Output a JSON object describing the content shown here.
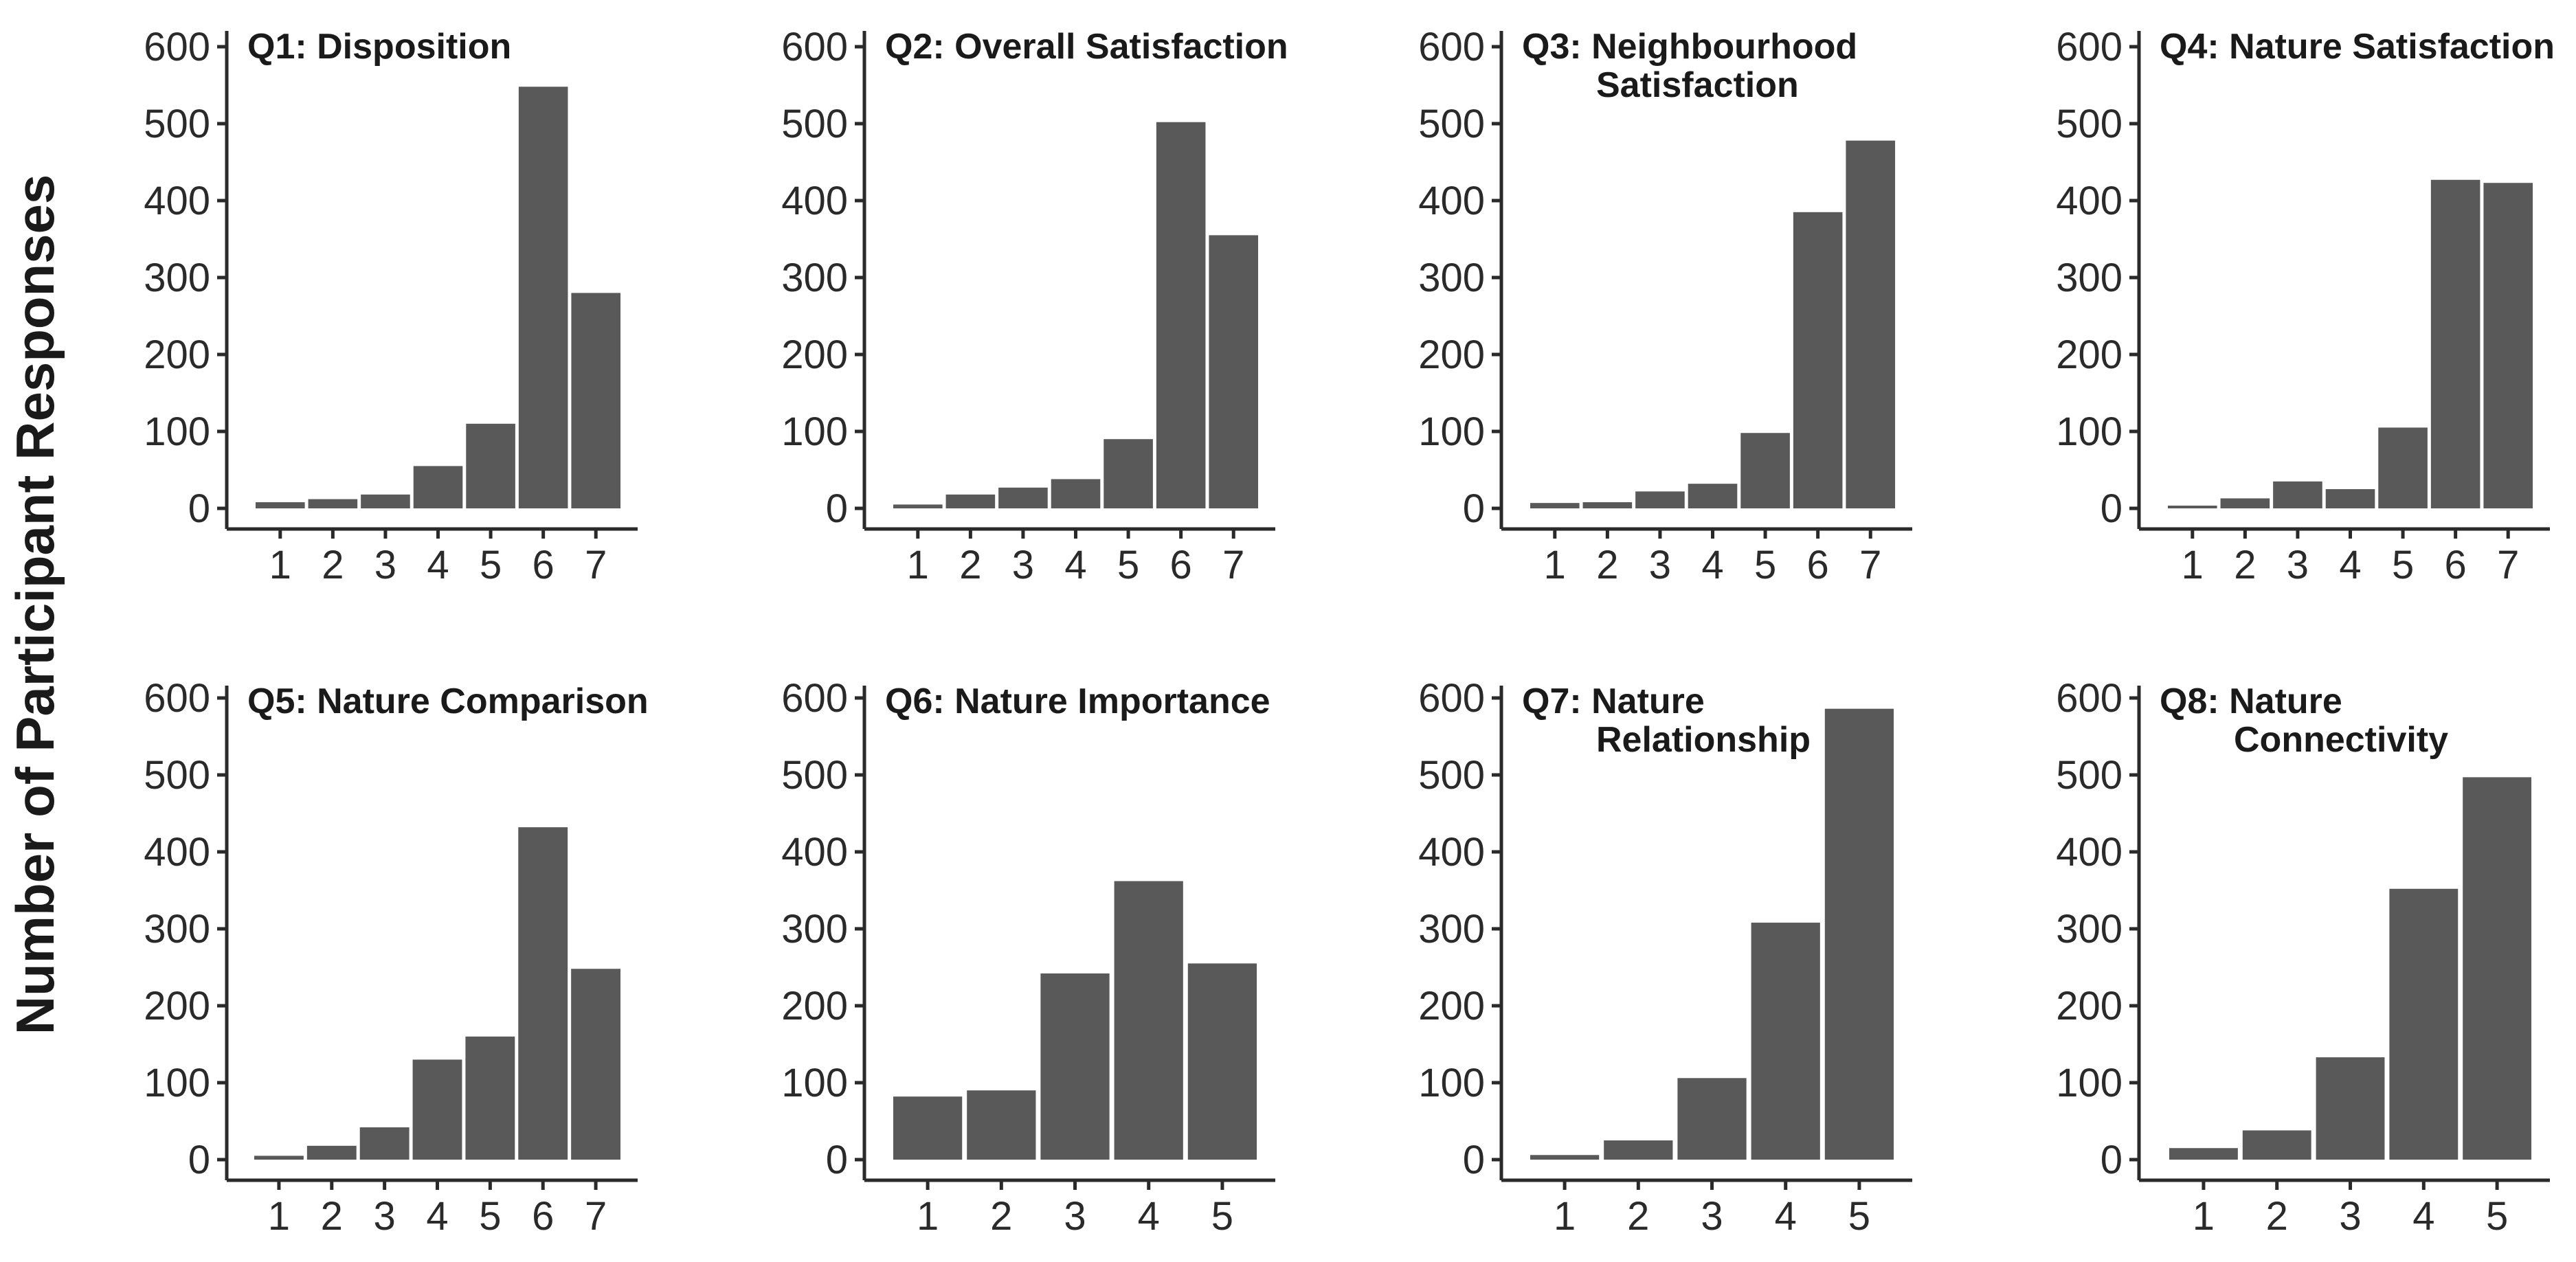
{
  "figure": {
    "ylabel": "Number of Participant Responses",
    "bar_color": "#595959",
    "axis_color": "#2a2a2a"
  },
  "chart_data": [
    {
      "type": "bar",
      "title_lines": [
        "Q1: Disposition"
      ],
      "categories": [
        "1",
        "2",
        "3",
        "4",
        "5",
        "6",
        "7"
      ],
      "values": [
        8,
        12,
        18,
        55,
        110,
        548,
        280
      ],
      "ylim": [
        0,
        620
      ],
      "yticks": [
        0,
        100,
        200,
        300,
        400,
        500,
        600
      ]
    },
    {
      "type": "bar",
      "title_lines": [
        "Q2: Overall Satisfaction"
      ],
      "categories": [
        "1",
        "2",
        "3",
        "4",
        "5",
        "6",
        "7"
      ],
      "values": [
        5,
        18,
        27,
        38,
        90,
        502,
        355
      ],
      "ylim": [
        0,
        620
      ],
      "yticks": [
        0,
        100,
        200,
        300,
        400,
        500,
        600
      ]
    },
    {
      "type": "bar",
      "title_lines": [
        "Q3: Neighbourhood",
        "Satisfaction"
      ],
      "categories": [
        "1",
        "2",
        "3",
        "4",
        "5",
        "6",
        "7"
      ],
      "values": [
        7,
        8,
        22,
        32,
        98,
        385,
        478
      ],
      "ylim": [
        0,
        620
      ],
      "yticks": [
        0,
        100,
        200,
        300,
        400,
        500,
        600
      ]
    },
    {
      "type": "bar",
      "title_lines": [
        "Q4: Nature Satisfaction"
      ],
      "categories": [
        "1",
        "2",
        "3",
        "4",
        "5",
        "6",
        "7"
      ],
      "values": [
        3,
        13,
        35,
        25,
        105,
        427,
        423
      ],
      "ylim": [
        0,
        620
      ],
      "yticks": [
        0,
        100,
        200,
        300,
        400,
        500,
        600
      ]
    },
    {
      "type": "bar",
      "title_lines": [
        "Q5: Nature Comparison"
      ],
      "categories": [
        "1",
        "2",
        "3",
        "4",
        "5",
        "6",
        "7"
      ],
      "values": [
        5,
        18,
        42,
        130,
        160,
        432,
        248
      ],
      "ylim": [
        0,
        620
      ],
      "yticks": [
        0,
        100,
        200,
        300,
        400,
        500,
        600
      ]
    },
    {
      "type": "bar",
      "title_lines": [
        "Q6: Nature Importance"
      ],
      "categories": [
        "1",
        "2",
        "3",
        "4",
        "5"
      ],
      "values": [
        82,
        90,
        242,
        362,
        255
      ],
      "ylim": [
        0,
        620
      ],
      "yticks": [
        0,
        100,
        200,
        300,
        400,
        500,
        600
      ]
    },
    {
      "type": "bar",
      "title_lines": [
        "Q7: Nature",
        "Relationship"
      ],
      "categories": [
        "1",
        "2",
        "3",
        "4",
        "5"
      ],
      "values": [
        6,
        25,
        106,
        308,
        586
      ],
      "ylim": [
        0,
        620
      ],
      "yticks": [
        0,
        100,
        200,
        300,
        400,
        500,
        600
      ]
    },
    {
      "type": "bar",
      "title_lines": [
        "Q8: Nature",
        "Connectivity"
      ],
      "categories": [
        "1",
        "2",
        "3",
        "4",
        "5"
      ],
      "values": [
        15,
        38,
        133,
        352,
        497
      ],
      "ylim": [
        0,
        620
      ],
      "yticks": [
        0,
        100,
        200,
        300,
        400,
        500,
        600
      ]
    }
  ]
}
